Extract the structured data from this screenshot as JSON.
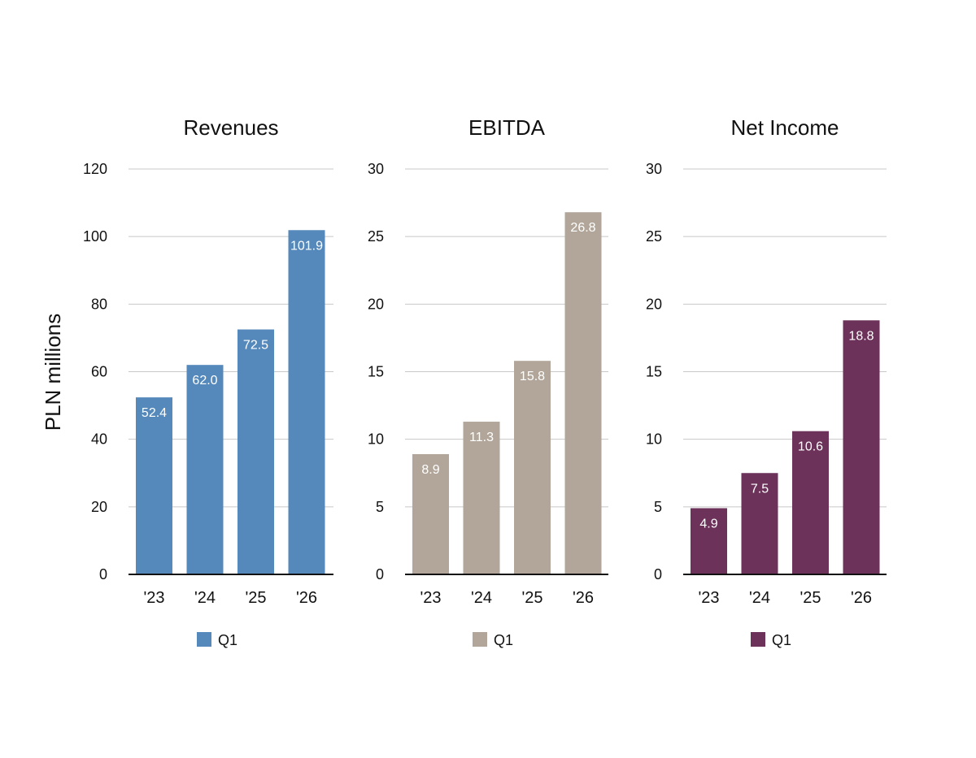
{
  "y_axis_label": "PLN millions",
  "chart_data": [
    {
      "type": "bar",
      "title": "Revenues",
      "categories": [
        "'23",
        "'24",
        "'25",
        "'26"
      ],
      "series": [
        {
          "name": "Q1",
          "values": [
            52.4,
            62.0,
            72.5,
            101.9
          ],
          "labels": [
            "52.4",
            "62.0",
            "72.5",
            "101.9"
          ]
        }
      ],
      "ylim": [
        0,
        120
      ],
      "yticks": [
        0,
        20,
        40,
        60,
        80,
        100,
        120
      ],
      "ylabel": "PLN millions",
      "color": "#5589bb",
      "grid": true,
      "legend": "bottom"
    },
    {
      "type": "bar",
      "title": "EBITDA",
      "categories": [
        "'23",
        "'24",
        "'25",
        "'26"
      ],
      "series": [
        {
          "name": "Q1",
          "values": [
            8.9,
            11.3,
            15.8,
            26.8
          ],
          "labels": [
            "8.9",
            "11.3",
            "15.8",
            "26.8"
          ]
        }
      ],
      "ylim": [
        0,
        30
      ],
      "yticks": [
        0,
        5,
        10,
        15,
        20,
        25,
        30
      ],
      "color": "#b1a699",
      "grid": true,
      "legend": "bottom"
    },
    {
      "type": "bar",
      "title": "Net Income",
      "categories": [
        "'23",
        "'24",
        "'25",
        "'26"
      ],
      "series": [
        {
          "name": "Q1",
          "values": [
            4.9,
            7.5,
            10.6,
            18.8
          ],
          "labels": [
            "4.9",
            "7.5",
            "10.6",
            "18.8"
          ]
        }
      ],
      "ylim": [
        0,
        30
      ],
      "yticks": [
        0,
        5,
        10,
        15,
        20,
        25,
        30
      ],
      "color": "#6c325a",
      "grid": true,
      "legend": "bottom"
    }
  ]
}
